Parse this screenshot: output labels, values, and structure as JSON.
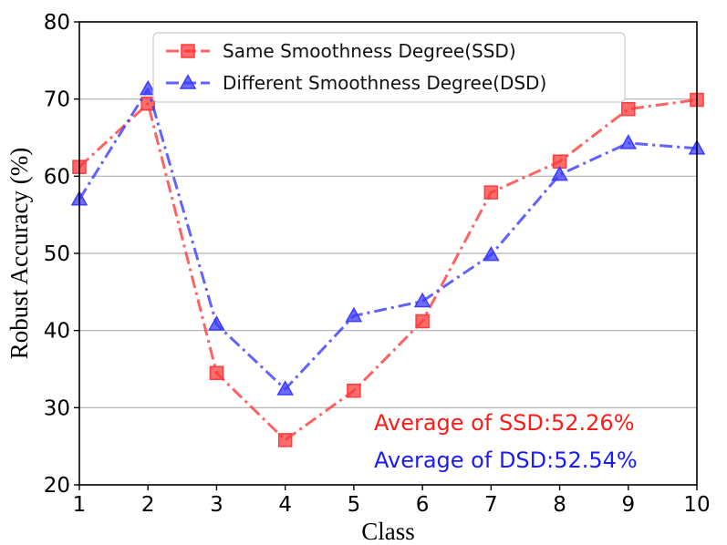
{
  "chart_data": {
    "type": "line",
    "title": "",
    "xlabel": "Class",
    "ylabel": "Robust Accuracy (%)",
    "x": [
      1,
      2,
      3,
      4,
      5,
      6,
      7,
      8,
      9,
      10
    ],
    "xlim": [
      1,
      10
    ],
    "ylim": [
      20,
      80
    ],
    "xticks": [
      "1",
      "2",
      "3",
      "4",
      "5",
      "6",
      "7",
      "8",
      "9",
      "10"
    ],
    "yticks": [
      "20",
      "30",
      "40",
      "50",
      "60",
      "70",
      "80"
    ],
    "grid": "horizontal",
    "legend_position": "top-center",
    "series": [
      {
        "name": "Same Smoothness Degree(SSD)",
        "color": "#ff3b3b",
        "marker": "square",
        "values": [
          61.2,
          69.4,
          34.5,
          25.8,
          32.2,
          41.2,
          57.9,
          61.9,
          68.7,
          69.9
        ]
      },
      {
        "name": "Different Smoothness Degree(DSD)",
        "color": "#3b3bff",
        "marker": "triangle",
        "values": [
          57.0,
          71.3,
          40.8,
          32.4,
          41.9,
          43.8,
          49.8,
          60.2,
          64.3,
          63.6
        ]
      }
    ],
    "annotations": [
      {
        "text": "Average of SSD:52.26%",
        "color": "#ff1a1a"
      },
      {
        "text": "Average of DSD:52.54%",
        "color": "#1a1aff"
      }
    ]
  }
}
